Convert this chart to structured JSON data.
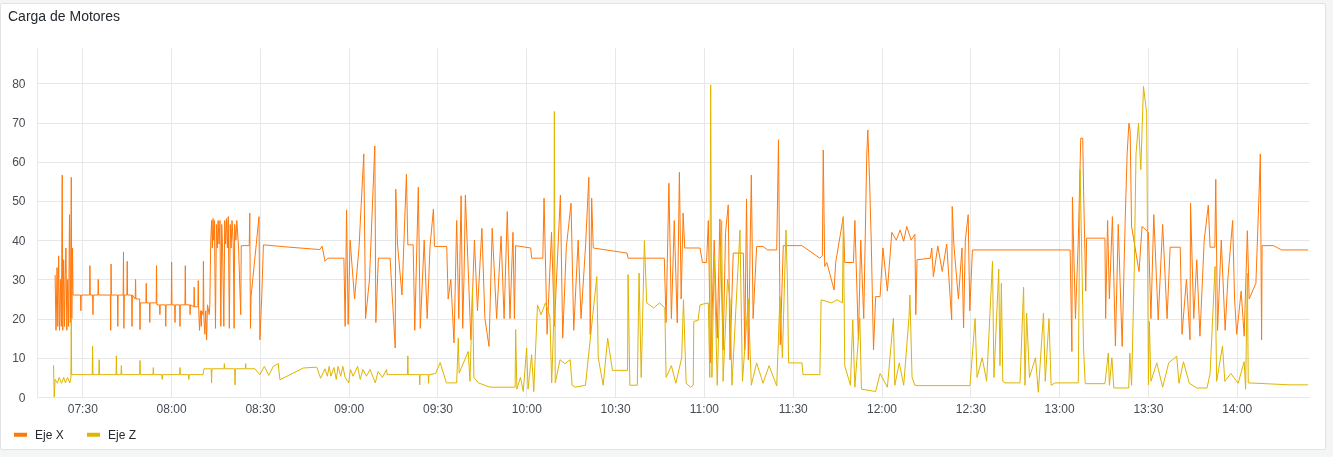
{
  "chart_data": {
    "type": "line",
    "title": "Carga de Motores",
    "xlim": [
      7.245,
      14.407
    ],
    "xticks": [
      {
        "value": 7.5,
        "label": "07:30"
      },
      {
        "value": 8,
        "label": "08:00"
      },
      {
        "value": 8.5,
        "label": "08:30"
      },
      {
        "value": 9,
        "label": "09:00"
      },
      {
        "value": 9.5,
        "label": "09:30"
      },
      {
        "value": 10,
        "label": "10:00"
      },
      {
        "value": 10.5,
        "label": "10:30"
      },
      {
        "value": 11,
        "label": "11:00"
      },
      {
        "value": 11.5,
        "label": "11:30"
      },
      {
        "value": 12,
        "label": "12:00"
      },
      {
        "value": 12.5,
        "label": "12:30"
      },
      {
        "value": 13,
        "label": "13:00"
      },
      {
        "value": 13.5,
        "label": "13:30"
      },
      {
        "value": 14,
        "label": "14:00"
      }
    ],
    "ylim": [
      0,
      89
    ],
    "yticks": [
      0,
      10,
      20,
      30,
      40,
      50,
      60,
      70,
      80
    ],
    "grid": true,
    "legend": "bottom",
    "series": [
      {
        "name": "Eje X",
        "color": "#ff780a",
        "x": [
          7.347,
          7.352,
          7.358,
          7.362,
          7.367,
          7.372,
          7.378,
          7.382,
          7.387,
          7.39,
          7.395,
          7.4,
          7.404,
          7.408,
          7.413,
          7.418,
          7.423,
          7.428,
          7.433,
          7.438,
          7.441,
          7.445,
          7.448,
          7.49,
          7.492,
          7.494,
          7.541,
          7.543,
          7.545,
          7.558,
          7.56,
          7.562,
          7.588,
          7.59,
          7.592,
          7.658,
          7.66,
          7.662,
          7.664,
          7.698,
          7.7,
          7.702,
          7.73,
          7.732,
          7.734,
          7.737,
          7.751,
          7.753,
          7.755,
          7.778,
          7.78,
          7.782,
          7.798,
          7.8,
          7.802,
          7.823,
          7.825,
          7.827,
          7.858,
          7.86,
          7.862,
          7.878,
          7.88,
          7.882,
          7.916,
          7.918,
          7.92,
          7.935,
          7.937,
          7.939,
          7.968,
          7.97,
          7.972,
          8.001,
          8.003,
          8.005,
          8.02,
          8.022,
          8.024,
          8.048,
          8.05,
          8.052,
          8.078,
          8.08,
          8.082,
          8.105,
          8.107,
          8.109,
          8.128,
          8.13,
          8.132,
          8.151,
          8.153,
          8.155,
          8.16,
          8.165,
          8.17,
          8.172,
          8.18,
          8.182,
          8.185,
          8.19,
          8.195,
          8.2,
          8.205,
          8.215,
          8.218,
          8.223,
          8.228,
          8.232,
          8.236,
          8.24,
          8.244,
          8.25,
          8.255,
          8.26,
          8.265,
          8.27,
          8.275,
          8.28,
          8.285,
          8.29,
          8.297,
          8.302,
          8.307,
          8.312,
          8.317,
          8.322,
          8.328,
          8.333,
          8.338,
          8.343,
          8.35,
          8.355,
          8.358,
          8.365,
          8.37,
          8.38,
          8.392,
          8.395,
          8.44,
          8.443,
          8.447,
          8.45,
          8.495,
          8.5,
          8.51,
          8.52,
          8.667,
          8.838,
          8.85,
          8.867,
          8.883,
          8.973,
          8.98,
          8.988,
          8.997,
          9.008,
          9.033,
          9.058,
          9.085,
          9.095,
          9.117,
          9.147,
          9.153,
          9.167,
          9.233,
          9.25,
          9.262,
          9.265,
          9.275,
          9.3,
          9.325,
          9.333,
          9.363,
          9.372,
          9.392,
          9.403,
          9.425,
          9.442,
          9.458,
          9.477,
          9.483,
          9.552,
          9.56,
          9.575,
          9.593,
          9.608,
          9.62,
          9.633,
          9.642,
          9.65,
          9.657,
          9.675,
          9.688,
          9.708,
          9.725,
          9.75,
          9.767,
          9.79,
          9.808,
          9.833,
          9.858,
          9.875,
          9.893,
          9.908,
          9.925,
          9.933,
          9.94,
          10.025,
          10.03,
          10.093,
          10.1,
          10.117,
          10.142,
          10.158,
          10.192,
          10.205,
          10.225,
          10.252,
          10.267,
          10.292,
          10.308,
          10.333,
          10.352,
          10.36,
          10.368,
          10.377,
          10.567,
          10.573,
          10.777,
          10.787,
          10.803,
          10.817,
          10.833,
          10.85,
          10.862,
          10.872,
          10.883,
          10.892,
          10.978,
          10.992,
          11.015,
          11.025,
          11.038,
          11.058,
          11.075,
          11.09,
          11.108,
          11.122,
          11.137,
          11.147,
          11.165,
          11.222,
          11.23,
          11.24,
          11.25,
          11.267,
          11.277,
          11.297,
          11.333,
          11.358,
          11.41,
          11.42,
          11.43,
          11.447,
          11.552,
          11.653,
          11.667,
          11.672,
          11.68,
          11.692,
          11.733,
          11.742,
          11.785,
          11.793,
          11.842,
          11.85,
          11.87,
          11.883,
          11.9,
          11.917,
          11.923,
          11.933,
          11.942,
          11.955,
          11.967,
          11.992,
          12.008,
          12.033,
          12.058,
          12.083,
          12.105,
          12.125,
          12.142,
          12.167,
          12.188,
          12.193,
          12.2,
          12.275,
          12.283,
          12.292,
          12.317,
          12.342,
          12.367,
          12.395,
          12.398,
          12.408,
          12.433,
          12.453,
          12.462,
          12.472,
          12.488,
          12.497,
          12.512,
          13.062,
          13.072,
          13.075,
          13.092,
          13.108,
          13.122,
          13.133,
          13.138,
          13.15,
          13.155,
          13.258,
          13.262,
          13.273,
          13.283,
          13.3,
          13.317,
          13.333,
          13.355,
          13.372,
          13.383,
          13.393,
          13.4,
          13.408,
          13.45,
          13.467,
          13.503,
          13.517,
          13.533,
          13.558,
          13.583,
          13.608,
          13.625,
          13.682,
          13.692,
          13.717,
          13.737,
          13.74,
          13.758,
          13.775,
          13.793,
          13.817,
          13.84,
          13.85,
          13.877,
          13.882,
          13.892,
          13.913,
          13.935,
          13.95,
          13.977,
          13.988,
          14.0,
          14.025,
          14.042,
          14.06,
          14.07,
          14.108,
          14.122,
          14.133,
          14.14,
          14.143,
          14.207,
          14.253,
          14.4
        ],
        "values": [
          31,
          17,
          33,
          18,
          36,
          17,
          30,
          18,
          56.6,
          17,
          35,
          18,
          31,
          38,
          17,
          30,
          18,
          46.5,
          19,
          56,
          20,
          38,
          26,
          26,
          22,
          26,
          26,
          33.5,
          26,
          26,
          21,
          26,
          26,
          30,
          26,
          26,
          17,
          33.9,
          26,
          26,
          18,
          26,
          26,
          37,
          17.5,
          26,
          26,
          34.6,
          26,
          26,
          18,
          26,
          25,
          30,
          25,
          25,
          17.2,
          24,
          24,
          29,
          24,
          24,
          19,
          24,
          24,
          33.5,
          23.5,
          23.5,
          21,
          23.5,
          23.5,
          18,
          23.5,
          23.5,
          34.4,
          23.5,
          23.5,
          19,
          23.5,
          23.5,
          18,
          23.5,
          23.5,
          33.5,
          23.5,
          23.5,
          21,
          23.5,
          23,
          28,
          23,
          23,
          29.7,
          23,
          17,
          22,
          18,
          22,
          21,
          34.6,
          20,
          16,
          22,
          14.6,
          23.5,
          21,
          23.5,
          39,
          45,
          38,
          45.5,
          40,
          45,
          17.5,
          44,
          38,
          45,
          39,
          45,
          18,
          44,
          38,
          18,
          45,
          39,
          45.5,
          38,
          46,
          17.5,
          44,
          38,
          45,
          39,
          17.5,
          44,
          40,
          45,
          38,
          21,
          38.6,
          38.6,
          46.9,
          17.5,
          25.5,
          46,
          14.6,
          25,
          38.8,
          38.2,
          37.6,
          38.5,
          34.6,
          35.4,
          35.4,
          18,
          47.7,
          18.5,
          40,
          25,
          38,
          62,
          20,
          30,
          64,
          19,
          35.4,
          35.4,
          22,
          12.5,
          53,
          38.8,
          26,
          56.8,
          38.8,
          38.8,
          17,
          53.5,
          17.5,
          40,
          20,
          38.4,
          47.9,
          38.4,
          38.4,
          25,
          30,
          13.8,
          45,
          20,
          51.3,
          17.5,
          32,
          51.5,
          30,
          14.6,
          40,
          22,
          43,
          20,
          12.9,
          43,
          20,
          41,
          20,
          47.3,
          20,
          42,
          20,
          38.6,
          38,
          35.4,
          35.4,
          50.7,
          16,
          42,
          18,
          51.5,
          15,
          38,
          49.4,
          17,
          40,
          20,
          38,
          56,
          15.9,
          50.7,
          38,
          36.7,
          35.4,
          35.4,
          19,
          54.5,
          20,
          45,
          18.9,
          57.3,
          25,
          46.9,
          38,
          38,
          34.3,
          34.3,
          45,
          8.7,
          40,
          15,
          45.4,
          12,
          42,
          49,
          9.5,
          36.7,
          36.7,
          12,
          50.5,
          9.5,
          56.6,
          20,
          38.4,
          38.4,
          37.5,
          37.5,
          65.6,
          13.3,
          38.6,
          38.6,
          35.4,
          36,
          63,
          33.3,
          34.3,
          27.3,
          34.3,
          46,
          34.3,
          34.3,
          45,
          14.6,
          40,
          20,
          62,
          68.1,
          55,
          40,
          12,
          25.6,
          25.6,
          38,
          27,
          42,
          40,
          42.6,
          39.7,
          43.5,
          40,
          41.5,
          21,
          35,
          35.4,
          38,
          30.7,
          38.5,
          32,
          39,
          19.7,
          48.6,
          38.5,
          25,
          38,
          17.6,
          40,
          46.5,
          22,
          37.5,
          37.5,
          11.6,
          51,
          20,
          40,
          66,
          66,
          52.4,
          27,
          40.5,
          40.5,
          20,
          45,
          25,
          46,
          13,
          44,
          12.9,
          45,
          62,
          69.8,
          68,
          43.5,
          32,
          43.5,
          42,
          20,
          46.5,
          19.7,
          44,
          20,
          38.2,
          38.2,
          16,
          30,
          14.6,
          49.4,
          20,
          35,
          15.5,
          40,
          48.9,
          38.2,
          38.2,
          55.5,
          17,
          40,
          17,
          30,
          45,
          25,
          16,
          27,
          15.5,
          42.4,
          25,
          29,
          46.9,
          62,
          14.6,
          38.6,
          38.6,
          37.5,
          37.5
        ]
      },
      {
        "name": "Eje Z",
        "color": "#e0b400",
        "x": [
          7.338,
          7.342,
          7.347,
          7.36,
          7.37,
          7.383,
          7.395,
          7.405,
          7.417,
          7.43,
          7.436,
          7.438,
          7.44,
          7.556,
          7.558,
          7.56,
          7.593,
          7.595,
          7.597,
          7.69,
          7.692,
          7.694,
          7.718,
          7.72,
          7.722,
          7.823,
          7.825,
          7.827,
          7.898,
          7.9,
          7.902,
          7.948,
          7.95,
          7.952,
          8.048,
          8.05,
          8.052,
          8.098,
          8.1,
          8.102,
          8.18,
          8.185,
          8.226,
          8.228,
          8.23,
          8.298,
          8.3,
          8.302,
          8.358,
          8.36,
          8.362,
          8.418,
          8.42,
          8.422,
          8.472,
          8.5,
          8.525,
          8.55,
          8.575,
          8.603,
          8.613,
          8.745,
          8.82,
          8.842,
          8.867,
          8.88,
          8.89,
          8.9,
          8.917,
          8.93,
          8.94,
          8.955,
          8.967,
          8.98,
          9.0,
          9.01,
          9.025,
          9.05,
          9.065,
          9.08,
          9.1,
          9.12,
          9.15,
          9.165,
          9.19,
          9.213,
          9.217,
          9.331,
          9.333,
          9.335,
          9.398,
          9.4,
          9.402,
          9.448,
          9.45,
          9.452,
          9.49,
          9.515,
          9.55,
          9.608,
          9.617,
          9.622,
          9.673,
          9.683,
          9.697,
          9.705,
          9.73,
          9.795,
          9.937,
          9.94,
          9.947,
          9.967,
          9.983,
          10.002,
          10.01,
          10.03,
          10.042,
          10.063,
          10.083,
          10.108,
          10.133,
          10.143,
          10.155,
          10.158,
          10.163,
          10.19,
          10.217,
          10.247,
          10.258,
          10.275,
          10.333,
          10.397,
          10.405,
          10.433,
          10.458,
          10.485,
          10.57,
          10.573,
          10.583,
          10.625,
          10.635,
          10.647,
          10.665,
          10.678,
          10.717,
          10.75,
          10.78,
          10.787,
          10.817,
          10.842,
          10.875,
          10.885,
          10.9,
          10.925,
          10.94,
          10.943,
          10.967,
          10.978,
          11.025,
          11.033,
          11.038,
          11.045,
          11.058,
          11.075,
          11.1,
          11.108,
          11.133,
          11.147,
          11.158,
          11.183,
          11.203,
          11.217,
          11.25,
          11.267,
          11.297,
          11.333,
          11.367,
          11.41,
          11.428,
          11.442,
          11.462,
          11.47,
          11.477,
          11.552,
          11.558,
          11.653,
          11.66,
          11.717,
          11.75,
          11.78,
          11.785,
          11.793,
          11.825,
          11.838,
          11.85,
          11.878,
          11.887,
          11.967,
          11.992,
          12.033,
          12.067,
          12.075,
          12.1,
          12.125,
          12.155,
          12.16,
          12.172,
          12.188,
          12.207,
          12.498,
          12.505,
          12.527,
          12.538,
          12.567,
          12.592,
          12.625,
          12.633,
          12.66,
          12.667,
          12.675,
          12.683,
          12.695,
          12.78,
          12.8,
          12.808,
          12.817,
          12.833,
          12.867,
          12.883,
          12.912,
          12.922,
          12.943,
          12.955,
          12.977,
          13.108,
          13.118,
          13.138,
          13.147,
          13.258,
          13.277,
          13.283,
          13.297,
          13.308,
          13.392,
          13.398,
          13.408,
          13.423,
          13.433,
          13.447,
          13.46,
          13.475,
          13.493,
          13.503,
          13.508,
          13.517,
          13.55,
          13.583,
          13.617,
          13.662,
          13.675,
          13.7,
          13.733,
          13.775,
          13.833,
          13.85,
          13.878,
          13.887,
          13.92,
          13.933,
          13.967,
          14.008,
          14.042,
          14.05,
          14.06,
          14.065,
          14.3,
          14.4
        ],
        "values": [
          8,
          0,
          4.5,
          3.5,
          5,
          3.5,
          5,
          3.6,
          5,
          3.6,
          5,
          20,
          5.7,
          5.7,
          13,
          5.7,
          5.7,
          9.5,
          5.7,
          5.7,
          10.5,
          5.7,
          5.7,
          8,
          5.7,
          5.7,
          9.3,
          5.7,
          5.7,
          7.5,
          5.7,
          5.7,
          4.5,
          5.7,
          5.7,
          7.5,
          5.7,
          5.7,
          4.5,
          5.7,
          5.7,
          7.2,
          7.2,
          3.6,
          7.2,
          7.2,
          8.5,
          7.2,
          7.2,
          3.1,
          7.2,
          7.2,
          8.5,
          7.2,
          7.2,
          5.7,
          7.8,
          5.5,
          7.8,
          8.5,
          4.4,
          7.4,
          7.6,
          4.8,
          7.2,
          5.3,
          7.8,
          5.3,
          7.5,
          4.5,
          7.8,
          5.3,
          7.8,
          5,
          3.6,
          7,
          5.3,
          7.8,
          4.5,
          7,
          5.3,
          7,
          3.6,
          6.5,
          5,
          7,
          5.7,
          5.7,
          10.5,
          5.7,
          5.7,
          3.1,
          5.7,
          5.7,
          3.5,
          5.7,
          6,
          8.8,
          3.6,
          3.6,
          15,
          6.1,
          11.6,
          4,
          28,
          5,
          3.6,
          2.5,
          2.5,
          17.2,
          2,
          5,
          1.4,
          12.5,
          2,
          10.8,
          1.4,
          23.5,
          21,
          24,
          20.5,
          3.6,
          20,
          72.8,
          3.6,
          9.5,
          8.5,
          9.5,
          3,
          2.5,
          3,
          30.7,
          10,
          3,
          15,
          6.8,
          6.8,
          31.2,
          3,
          3,
          31.6,
          5,
          39.9,
          24,
          22.7,
          24,
          22.7,
          5,
          8,
          3.5,
          10,
          24.8,
          3.5,
          2.5,
          3,
          19.3,
          19.5,
          23.5,
          24,
          5,
          79.6,
          5,
          36,
          3,
          45,
          4,
          30,
          24.8,
          3,
          25,
          42.6,
          4,
          25,
          3,
          8.7,
          3.5,
          8,
          2.8,
          25.6,
          10,
          42.6,
          29.9,
          8.7,
          8.7,
          5.7,
          5.7,
          24.8,
          24,
          24.8,
          24,
          45.9,
          8,
          3,
          19.7,
          2.5,
          20.1,
          2,
          1.4,
          6,
          2.5,
          20.1,
          3,
          8.7,
          3,
          20.5,
          26,
          5,
          3,
          2.9,
          2.9,
          7,
          20,
          5,
          10,
          4,
          34.6,
          5,
          32.6,
          8,
          29,
          4,
          3.6,
          3.6,
          28,
          3,
          21.4,
          5,
          10,
          1.2,
          21.4,
          4,
          20,
          3,
          3.6,
          3.6,
          58,
          12,
          3.4,
          3.4,
          11.2,
          3,
          10,
          2.3,
          2.3,
          11.2,
          3,
          32,
          62,
          69.8,
          58,
          79.2,
          72.3,
          3.1,
          19.3,
          4,
          8.7,
          2.5,
          8.7,
          10.4,
          3.5,
          9,
          3.5,
          2.3,
          2.3,
          6,
          33.3,
          4,
          13,
          4,
          6,
          3.5,
          9,
          2,
          31.6,
          3.6,
          3.1,
          3.1
        ]
      }
    ]
  }
}
